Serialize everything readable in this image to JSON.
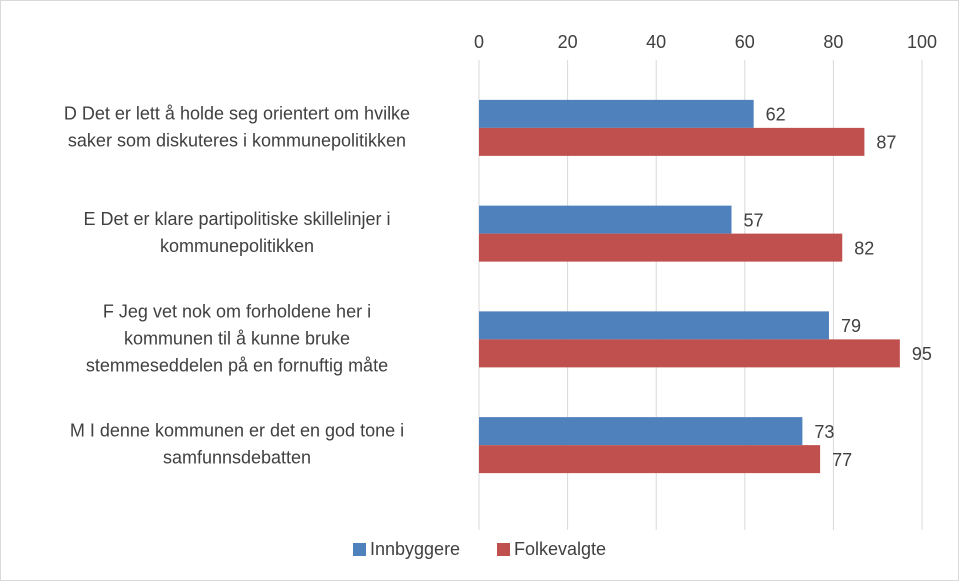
{
  "chart_data": {
    "type": "barh",
    "categories": [
      [
        "D Det er lett å holde seg orientert om hvilke",
        "saker som diskuteres i kommunepolitikken"
      ],
      [
        "E Det er klare partipolitiske skillelinjer i",
        "kommunepolitikken"
      ],
      [
        "F Jeg vet nok om forholdene her i",
        "kommunen til å kunne bruke",
        "stemmeseddelen på en fornuftig måte"
      ],
      [
        "M I denne kommunen er det en god tone i",
        "samfunnsdebatten"
      ]
    ],
    "series": [
      {
        "name": "Innbyggere",
        "color": "#4f81bd",
        "values": [
          62,
          57,
          79,
          73
        ]
      },
      {
        "name": "Folkevalgte",
        "color": "#c0504d",
        "values": [
          87,
          82,
          95,
          77
        ]
      }
    ],
    "xlim": [
      0,
      100
    ],
    "xticks": [
      0,
      20,
      40,
      60,
      80,
      100
    ],
    "grid": true,
    "legend": "bottom"
  }
}
